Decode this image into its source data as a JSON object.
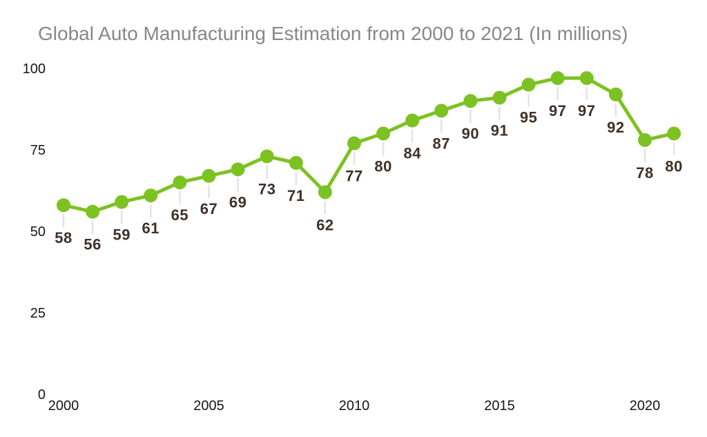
{
  "chart_data": {
    "type": "line",
    "title": "Global Auto Manufacturing Estimation from 2000 to 2021 (In millions)",
    "x": [
      2000,
      2001,
      2002,
      2003,
      2004,
      2005,
      2006,
      2007,
      2008,
      2009,
      2010,
      2011,
      2012,
      2013,
      2014,
      2015,
      2016,
      2017,
      2018,
      2019,
      2020,
      2021
    ],
    "values": [
      58,
      56,
      59,
      61,
      65,
      67,
      69,
      73,
      71,
      62,
      77,
      80,
      84,
      87,
      90,
      91,
      95,
      97,
      97,
      92,
      78,
      80
    ],
    "xlabel": "",
    "ylabel": "",
    "ylim": [
      0,
      100
    ],
    "y_ticks": [
      0,
      25,
      50,
      75,
      100
    ],
    "x_ticks": [
      2000,
      2005,
      2010,
      2015,
      2020
    ],
    "grid": false,
    "legend": "none",
    "data_labels_visible": true,
    "colors": {
      "line": "#7CC222",
      "marker": "#7CC222",
      "data_label": "#3F3028",
      "axis_label": "#161616",
      "title": "#878787",
      "leader_line": "#E3E3E3",
      "background": "#FFFFFF"
    }
  }
}
